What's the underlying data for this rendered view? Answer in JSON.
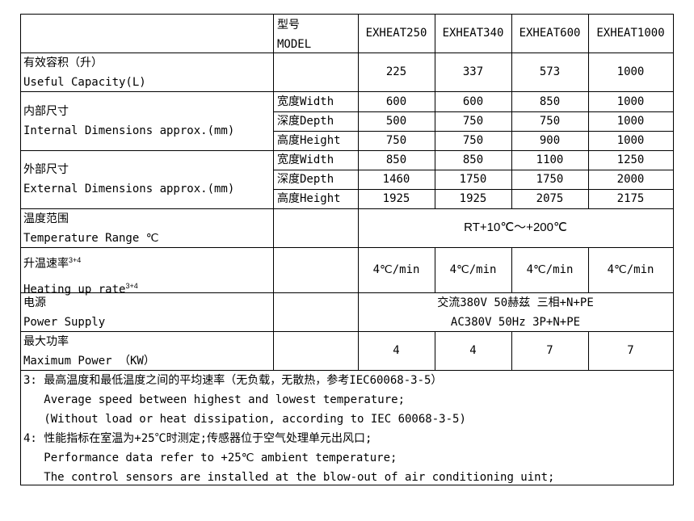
{
  "header": {
    "model_cn": "型号",
    "model_en": "MODEL",
    "models": [
      "EXHEAT250",
      "EXHEAT340",
      "EXHEAT600",
      "EXHEAT1000"
    ]
  },
  "capacity": {
    "cn": "有效容积（升）",
    "en": "Useful Capacity(L)",
    "values": [
      "225",
      "337",
      "573",
      "1000"
    ]
  },
  "internal": {
    "cn": "内部尺寸",
    "en": "Internal Dimensions approx.(mm)",
    "rows": [
      {
        "label": "宽度Width",
        "values": [
          "600",
          "600",
          "850",
          "1000"
        ]
      },
      {
        "label": "深度Depth",
        "values": [
          "500",
          "750",
          "750",
          "1000"
        ]
      },
      {
        "label": "高度Height",
        "values": [
          "750",
          "750",
          "900",
          "1000"
        ]
      }
    ]
  },
  "external": {
    "cn": "外部尺寸",
    "en": "External Dimensions approx.(mm)",
    "rows": [
      {
        "label": "宽度Width",
        "values": [
          "850",
          "850",
          "1100",
          "1250"
        ]
      },
      {
        "label": "深度Depth",
        "values": [
          "1460",
          "1750",
          "1750",
          "2000"
        ]
      },
      {
        "label": "高度Height",
        "values": [
          "1925",
          "1925",
          "2075",
          "2175"
        ]
      }
    ]
  },
  "temperature": {
    "cn": "温度范围",
    "en": "Temperature Range ℃",
    "value": "RT+10℃～+200℃"
  },
  "heating": {
    "cn": "升温速率",
    "en": "Heating up rate",
    "sup": "3+4",
    "values": [
      "4℃/min",
      "4℃/min",
      "4℃/min",
      "4℃/min"
    ]
  },
  "power_supply": {
    "cn": "电源",
    "en": "Power Supply",
    "value_cn": "交流380V 50赫兹 三相+N+PE",
    "value_en": "AC380V 50Hz 3P+N+PE"
  },
  "max_power": {
    "cn": "最大功率",
    "en": "Maximum Power （KW）",
    "values": [
      "4",
      "4",
      "7",
      "7"
    ]
  },
  "notes": [
    "3: 最高温度和最低温度之间的平均速率（无负载，无散热，参考IEC60068-3-5）",
    "   Average speed between highest and lowest temperature;",
    "   (Without load or heat dissipation, according to IEC 60068-3-5)",
    "4: 性能指标在室温为+25℃时测定;传感器位于空气处理单元出风口;",
    "   Performance data refer to +25℃ ambient temperature;",
    "   The control sensors are installed at the blow-out of air conditioning uint;"
  ]
}
